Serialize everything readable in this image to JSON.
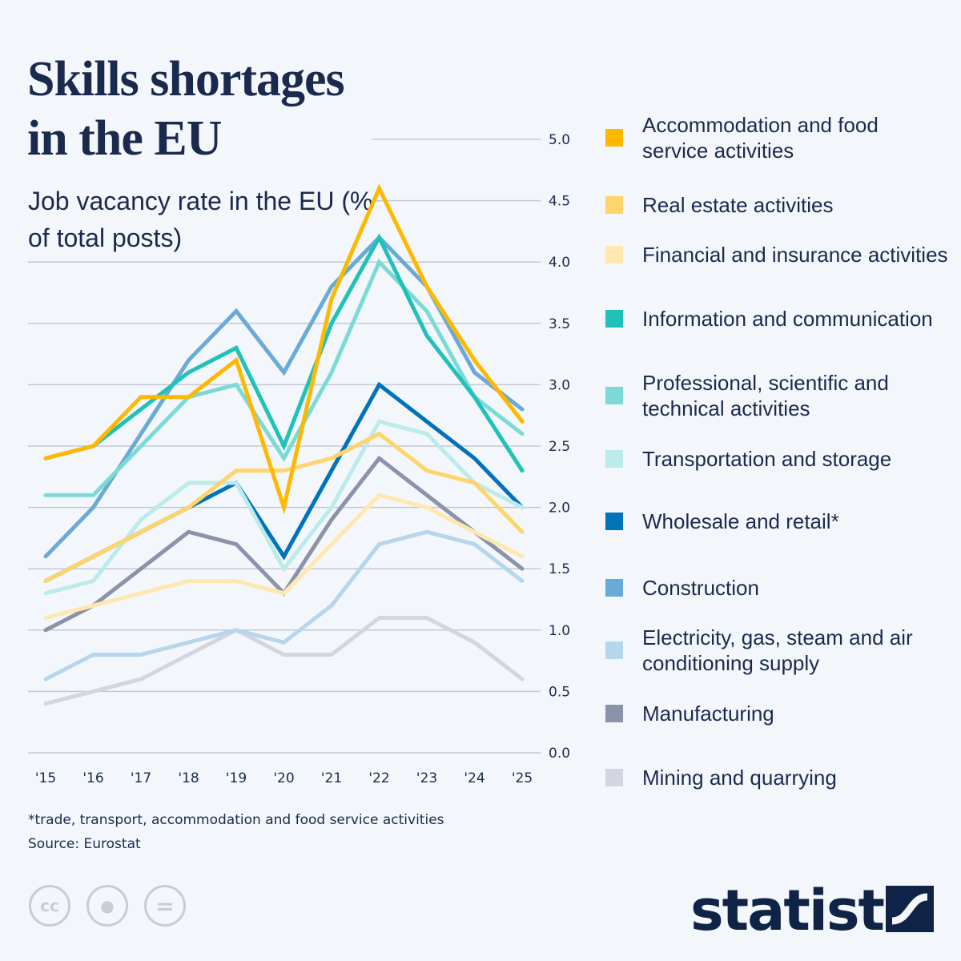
{
  "title": "Skills shortages in the EU",
  "subtitle": "Job vacancy rate in the EU (% of total posts)",
  "note": "*trade, transport, accommodation and food service activities",
  "source": "Source: Eurostat",
  "brand": "statista",
  "license_icons": [
    "cc-icon",
    "attribution-icon",
    "no-derivatives-icon"
  ],
  "chart_data": {
    "type": "line",
    "title": "Job vacancy rate in the EU (% of total posts)",
    "categories": [
      "'15",
      "'16",
      "'17",
      "'18",
      "'19",
      "'20",
      "'21",
      "'22",
      "'23",
      "'24",
      "'25"
    ],
    "yticks": [
      "0.0",
      "0.5",
      "1.0",
      "1.5",
      "2.0",
      "2.5",
      "3.0",
      "3.5",
      "4.0",
      "4.5",
      "5.0"
    ],
    "ylim": [
      0,
      5
    ],
    "grid": true,
    "legend_position": "right",
    "series": [
      {
        "name": "Mining and quarrying",
        "color": "#d3d6df",
        "values": [
          0.4,
          0.5,
          0.6,
          0.8,
          1.0,
          0.8,
          0.8,
          1.1,
          1.1,
          0.9,
          0.6
        ]
      },
      {
        "name": "Manufacturing",
        "color": "#8a93aa",
        "values": [
          1.0,
          1.2,
          1.5,
          1.8,
          1.7,
          1.3,
          1.9,
          2.4,
          2.1,
          1.8,
          1.5
        ]
      },
      {
        "name": "Electricity, gas, steam and air conditioning supply",
        "color": "#b5d6ec",
        "values": [
          0.6,
          0.8,
          0.8,
          0.9,
          1.0,
          0.9,
          1.2,
          1.7,
          1.8,
          1.7,
          1.4
        ]
      },
      {
        "name": "Construction",
        "color": "#6aaad6",
        "values": [
          1.6,
          2.0,
          2.6,
          3.2,
          3.6,
          3.1,
          3.8,
          4.2,
          3.8,
          3.1,
          2.8
        ]
      },
      {
        "name": "Wholesale and retail*",
        "color": "#0073bb",
        "values": [
          1.4,
          1.6,
          1.8,
          2.0,
          2.2,
          1.6,
          2.3,
          3.0,
          2.7,
          2.4,
          2.0
        ]
      },
      {
        "name": "Transportation and storage",
        "color": "#bbebea",
        "values": [
          1.3,
          1.4,
          1.9,
          2.2,
          2.2,
          1.5,
          2.0,
          2.7,
          2.6,
          2.2,
          2.0
        ]
      },
      {
        "name": "Professional, scientific and technical activities",
        "color": "#7cdad6",
        "values": [
          2.1,
          2.1,
          2.5,
          2.9,
          3.0,
          2.4,
          3.1,
          4.0,
          3.6,
          2.9,
          2.6
        ]
      },
      {
        "name": "Information and communication",
        "color": "#1fc1b9",
        "values": [
          2.4,
          2.5,
          2.8,
          3.1,
          3.3,
          2.5,
          3.5,
          4.2,
          3.4,
          2.9,
          2.3
        ]
      },
      {
        "name": "Financial and insurance activities",
        "color": "#ffe7b0",
        "values": [
          1.1,
          1.2,
          1.3,
          1.4,
          1.4,
          1.3,
          1.7,
          2.1,
          2.0,
          1.8,
          1.6
        ]
      },
      {
        "name": "Real estate activities",
        "color": "#ffd46a",
        "values": [
          1.4,
          1.6,
          1.8,
          2.0,
          2.3,
          2.3,
          2.4,
          2.6,
          2.3,
          2.2,
          1.8
        ]
      },
      {
        "name": "Accommodation and food service activities",
        "color": "#ffb800",
        "values": [
          2.4,
          2.5,
          2.9,
          2.9,
          3.2,
          2.0,
          3.7,
          4.6,
          3.8,
          3.2,
          2.7
        ]
      }
    ]
  }
}
